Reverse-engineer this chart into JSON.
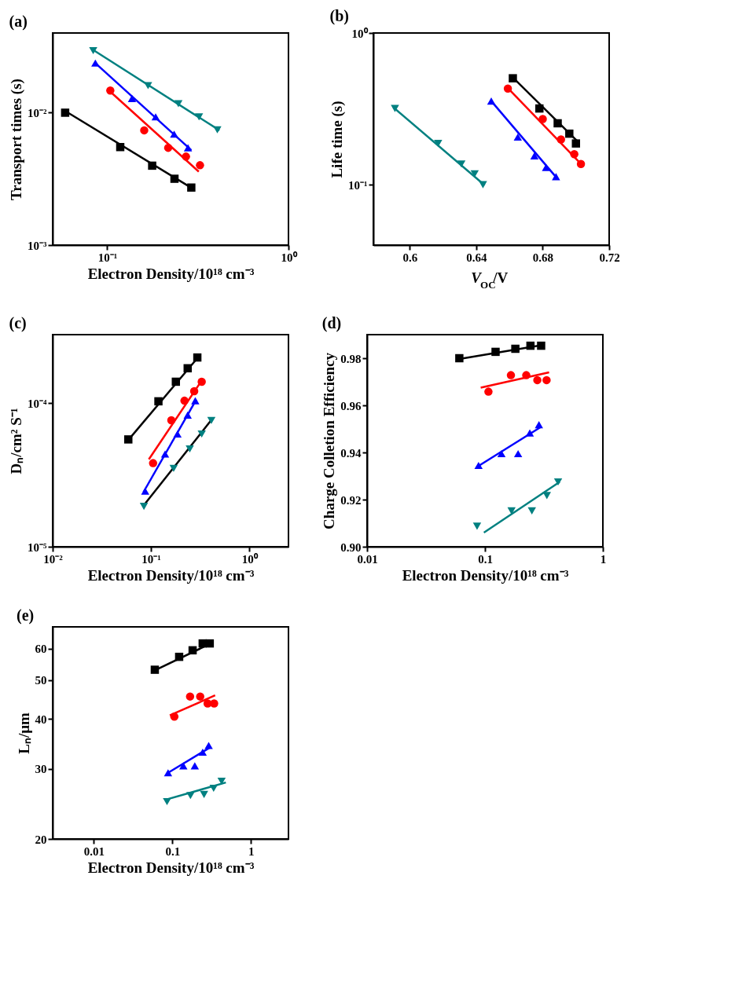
{
  "chart_data": [
    {
      "type": "scatter",
      "title": "(a)",
      "xlabel": "Electron Density/10¹⁸ cm⁻³",
      "ylabel": "Transport times (s)",
      "log": "xy",
      "grid": false,
      "xlim": [
        0.05,
        1
      ],
      "ylim": [
        0.001,
        0.04
      ],
      "xticks": [
        {
          "value": 0.1,
          "label": "10⁻¹"
        },
        {
          "value": 1,
          "label": "10⁰"
        }
      ],
      "yticks": [
        {
          "value": 0.001,
          "label": "10⁻³"
        },
        {
          "value": 0.01,
          "label": "10⁻²"
        }
      ],
      "series": [
        {
          "marker": "square",
          "color": "#000000",
          "x": [
            0.0586,
            0.118,
            0.177,
            0.235,
            0.291
          ],
          "values": [
            0.01,
            0.0055,
            0.00398,
            0.00317,
            0.00272
          ]
        },
        {
          "marker": "circle",
          "color": "#ff0000",
          "x": [
            0.104,
            0.16,
            0.217,
            0.272,
            0.325
          ],
          "values": [
            0.0147,
            0.00736,
            0.00543,
            0.00466,
            0.00401
          ]
        },
        {
          "marker": "triangle",
          "color": "#0000ff",
          "x": [
            0.086,
            0.137,
            0.185,
            0.234,
            0.279
          ],
          "values": [
            0.0237,
            0.0128,
            0.0093,
            0.00689,
            0.00543
          ]
        },
        {
          "marker": "triangle-down",
          "color": "#008080",
          "x": [
            0.0837,
            0.168,
            0.247,
            0.321,
            0.405
          ],
          "values": [
            0.0294,
            0.016,
            0.0117,
            0.0093,
            0.00742
          ]
        },
        {
          "type": "line",
          "color": "#000000",
          "x": [
            0.0586,
            0.295
          ],
          "values": [
            0.0103,
            0.00268
          ]
        },
        {
          "type": "line",
          "color": "#ff0000",
          "x": [
            0.104,
            0.32
          ],
          "values": [
            0.0144,
            0.00359
          ]
        },
        {
          "type": "line",
          "color": "#0000ff",
          "x": [
            0.086,
            0.291
          ],
          "values": [
            0.0237,
            0.00521
          ]
        },
        {
          "type": "line",
          "color": "#008080",
          "x": [
            0.0826,
            0.416
          ],
          "values": [
            0.0301,
            0.00736
          ]
        }
      ]
    },
    {
      "type": "scatter",
      "title": "(b)",
      "xlabel": "V$_{OC}$/V",
      "ylabel": "Life time (s)",
      "log": "y",
      "grid": false,
      "xlim": [
        0.578,
        0.72
      ],
      "ylim": [
        0.04,
        1
      ],
      "xticks": [
        0.6,
        0.64,
        0.68,
        0.72
      ],
      "yticks": [
        {
          "value": 0.1,
          "label": "10⁻¹"
        },
        {
          "value": 1,
          "label": "10⁰"
        }
      ],
      "series": [
        {
          "marker": "square",
          "color": "#000000",
          "x": [
            0.662,
            0.678,
            0.689,
            0.696,
            0.7
          ],
          "values": [
            0.503,
            0.318,
            0.254,
            0.217,
            0.187
          ]
        },
        {
          "marker": "circle",
          "color": "#ff0000",
          "x": [
            0.659,
            0.68,
            0.691,
            0.699,
            0.703
          ],
          "values": [
            0.43,
            0.271,
            0.199,
            0.159,
            0.137
          ]
        },
        {
          "marker": "triangle",
          "color": "#0000ff",
          "x": [
            0.649,
            0.665,
            0.675,
            0.682,
            0.688
          ],
          "values": [
            0.356,
            0.206,
            0.155,
            0.13,
            0.113
          ]
        },
        {
          "marker": "triangle-down",
          "color": "#008080",
          "x": [
            0.591,
            0.617,
            0.631,
            0.639,
            0.644
          ],
          "values": [
            0.318,
            0.187,
            0.137,
            0.118,
            0.1
          ]
        },
        {
          "type": "line",
          "color": "#000000",
          "x": [
            0.662,
            0.702
          ],
          "values": [
            0.509,
            0.188
          ]
        },
        {
          "type": "line",
          "color": "#ff0000",
          "x": [
            0.659,
            0.703
          ],
          "values": [
            0.433,
            0.137
          ]
        },
        {
          "type": "line",
          "color": "#0000ff",
          "x": [
            0.649,
            0.689
          ],
          "values": [
            0.356,
            0.109
          ]
        },
        {
          "type": "line",
          "color": "#008080",
          "x": [
            0.59,
            0.645
          ],
          "values": [
            0.324,
            0.0993
          ]
        }
      ]
    },
    {
      "type": "scatter",
      "title": "(c)",
      "xlabel": "Electron Density/10¹⁸ cm⁻³",
      "ylabel": "Dₙ/cm² S⁻¹",
      "log": "xy",
      "grid": false,
      "xlim": [
        0.01,
        2.5
      ],
      "ylim": [
        1e-05,
        0.0003
      ],
      "xticks": [
        {
          "value": 0.01,
          "label": "10⁻²"
        },
        {
          "value": 0.1,
          "label": "10⁻¹"
        },
        {
          "value": 1,
          "label": "10⁰"
        }
      ],
      "yticks": [
        {
          "value": 1e-05,
          "label": "10⁻⁵"
        },
        {
          "value": 0.0001,
          "label": "10⁻⁴"
        }
      ],
      "series": [
        {
          "marker": "square",
          "color": "#000000",
          "x": [
            0.0588,
            0.119,
            0.179,
            0.236,
            0.296
          ],
          "values": [
            5.59e-05,
            0.000103,
            0.000141,
            0.000175,
            0.000208
          ]
        },
        {
          "marker": "circle",
          "color": "#ff0000",
          "x": [
            0.105,
            0.161,
            0.219,
            0.275,
            0.328
          ],
          "values": [
            3.82e-05,
            7.6e-05,
            0.000104,
            0.000121,
            0.000141
          ]
        },
        {
          "marker": "triangle",
          "color": "#0000ff",
          "x": [
            0.0873,
            0.139,
            0.186,
            0.236,
            0.282
          ],
          "values": [
            2.44e-05,
            4.42e-05,
            6.1e-05,
            8.26e-05,
            0.000104
          ]
        },
        {
          "marker": "triangle-down",
          "color": "#008080",
          "x": [
            0.0847,
            0.17,
            0.248,
            0.328,
            0.411
          ],
          "values": [
            1.91e-05,
            3.51e-05,
            4.8e-05,
            6.1e-05,
            7.57e-05
          ]
        },
        {
          "type": "line",
          "color": "#000000",
          "x": [
            0.0588,
            0.304
          ],
          "values": [
            5.54e-05,
            0.00021
          ]
        },
        {
          "type": "line",
          "color": "#ff0000",
          "x": [
            0.0951,
            0.315
          ],
          "values": [
            4.06e-05,
            0.000138
          ]
        },
        {
          "type": "line",
          "color": "#0000ff",
          "x": [
            0.0838,
            0.289
          ],
          "values": [
            2.4e-05,
            0.000106
          ]
        },
        {
          "type": "line",
          "color": "#000000",
          "x": [
            0.0847,
            0.422
          ],
          "values": [
            1.95e-05,
            7.81e-05
          ]
        }
      ]
    },
    {
      "type": "scatter",
      "title": "(d)",
      "xlabel": "Electron Density/10¹⁸ cm⁻³",
      "ylabel": "Charge Colletion Efficiency",
      "log": "x",
      "grid": false,
      "xlim": [
        0.01,
        1
      ],
      "ylim": [
        0.9,
        0.99
      ],
      "xticks": [
        0.01,
        0.1,
        1
      ],
      "yticks": [
        {
          "value": 0.9,
          "label": "0.90"
        },
        0.92,
        0.94,
        0.96,
        0.98
      ],
      "series": [
        {
          "marker": "square",
          "color": "#000000",
          "x": [
            0.0606,
            0.123,
            0.181,
            0.243,
            0.2995
          ],
          "values": [
            0.98,
            0.9827,
            0.984,
            0.9853,
            0.9853
          ]
        },
        {
          "marker": "circle",
          "color": "#ff0000",
          "x": [
            0.107,
            0.166,
            0.224,
            0.278,
            0.333
          ],
          "values": [
            0.9658,
            0.9728,
            0.9728,
            0.9707,
            0.9707
          ]
        },
        {
          "marker": "triangle",
          "color": "#0000ff",
          "x": [
            0.0882,
            0.138,
            0.191,
            0.24,
            0.287
          ],
          "values": [
            0.9345,
            0.9395,
            0.9395,
            0.9483,
            0.9518
          ]
        },
        {
          "marker": "triangle-down",
          "color": "#008080",
          "x": [
            0.0857,
            0.168,
            0.25,
            0.335,
            0.417
          ],
          "values": [
            0.9087,
            0.9152,
            0.9152,
            0.9217,
            0.9275
          ]
        },
        {
          "type": "line",
          "color": "#000000",
          "x": [
            0.0606,
            0.315
          ],
          "values": [
            0.9797,
            0.9857
          ]
        },
        {
          "type": "line",
          "color": "#ff0000",
          "x": [
            0.092,
            0.35
          ],
          "values": [
            0.9675,
            0.974
          ]
        },
        {
          "type": "line",
          "color": "#0000ff",
          "x": [
            0.0864,
            0.302
          ],
          "values": [
            0.934,
            0.951
          ]
        },
        {
          "type": "line",
          "color": "#008080",
          "x": [
            0.0979,
            0.43
          ],
          "values": [
            0.906,
            0.9275
          ]
        }
      ]
    },
    {
      "type": "scatter",
      "title": "(e)",
      "xlabel": "Electron Density/10¹⁸ cm⁻³",
      "ylabel": "Lₙ/μm",
      "log": "xy",
      "grid": false,
      "xlim": [
        0.003,
        3
      ],
      "ylim": [
        20,
        68
      ],
      "xticks": [
        0.01,
        0.1,
        1
      ],
      "yticks": [
        20,
        30,
        40,
        50,
        60
      ],
      "series": [
        {
          "marker": "square",
          "color": "#000000",
          "x": [
            0.0598,
            0.122,
            0.181,
            0.243,
            0.299
          ],
          "values": [
            53.1,
            57.2,
            59.4,
            61.8,
            61.8
          ]
        },
        {
          "marker": "circle",
          "color": "#ff0000",
          "x": [
            0.106,
            0.168,
            0.226,
            0.281,
            0.34
          ],
          "values": [
            40.5,
            45.5,
            45.5,
            43.7,
            43.7
          ]
        },
        {
          "marker": "triangle",
          "color": "#0000ff",
          "x": [
            0.0882,
            0.138,
            0.193,
            0.243,
            0.29
          ],
          "values": [
            29.3,
            30.5,
            30.5,
            33.0,
            34.3
          ]
        },
        {
          "marker": "triangle-down",
          "color": "#008080",
          "x": [
            0.0855,
            0.17,
            0.253,
            0.335,
            0.423
          ],
          "values": [
            24.8,
            25.7,
            25.85,
            26.8,
            27.9
          ]
        },
        {
          "type": "line",
          "color": "#000000",
          "x": [
            0.0598,
            0.309
          ],
          "values": [
            52.9,
            61.8
          ]
        },
        {
          "type": "line",
          "color": "#ff0000",
          "x": [
            0.0928,
            0.35
          ],
          "values": [
            40.8,
            45.8
          ]
        },
        {
          "type": "line",
          "color": "#0000ff",
          "x": [
            0.0882,
            0.309
          ],
          "values": [
            29.3,
            34.0
          ]
        },
        {
          "type": "line",
          "color": "#008080",
          "x": [
            0.0829,
            0.479
          ],
          "values": [
            25.1,
            27.7
          ]
        }
      ]
    }
  ]
}
